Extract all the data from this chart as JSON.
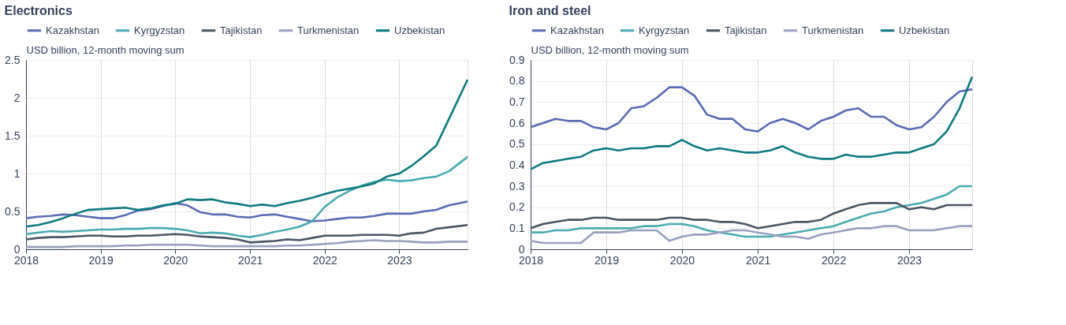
{
  "chart_data": [
    {
      "type": "line",
      "title": "Electronics",
      "ylabel": "USD billion, 12-month moving sum",
      "x": [
        "2018-01",
        "2018-03",
        "2018-05",
        "2018-07",
        "2018-09",
        "2018-11",
        "2019-01",
        "2019-03",
        "2019-05",
        "2019-07",
        "2019-09",
        "2019-11",
        "2020-01",
        "2020-03",
        "2020-05",
        "2020-07",
        "2020-09",
        "2020-11",
        "2021-01",
        "2021-03",
        "2021-05",
        "2021-07",
        "2021-09",
        "2021-11",
        "2022-01",
        "2022-03",
        "2022-05",
        "2022-07",
        "2022-09",
        "2022-11",
        "2023-01",
        "2023-03",
        "2023-05",
        "2023-07",
        "2023-09",
        "2023-12"
      ],
      "series": [
        {
          "name": "Kazakhstan",
          "color": "#5b6bb5",
          "values": [
            0.41,
            0.43,
            0.44,
            0.46,
            0.45,
            0.43,
            0.41,
            0.41,
            0.45,
            0.51,
            0.53,
            0.57,
            0.61,
            0.58,
            0.49,
            0.46,
            0.46,
            0.43,
            0.42,
            0.45,
            0.46,
            0.43,
            0.4,
            0.37,
            0.38,
            0.4,
            0.42,
            0.42,
            0.44,
            0.47,
            0.47,
            0.47,
            0.5,
            0.52,
            0.58,
            0.63
          ]
        },
        {
          "name": "Kyrgyzstan",
          "color": "#4aabb0",
          "values": [
            0.2,
            0.22,
            0.24,
            0.23,
            0.24,
            0.25,
            0.26,
            0.26,
            0.27,
            0.27,
            0.28,
            0.28,
            0.27,
            0.25,
            0.21,
            0.22,
            0.21,
            0.18,
            0.16,
            0.19,
            0.23,
            0.26,
            0.3,
            0.37,
            0.56,
            0.68,
            0.77,
            0.84,
            0.89,
            0.92,
            0.9,
            0.91,
            0.94,
            0.96,
            1.03,
            1.22
          ]
        },
        {
          "name": "Tajikistan",
          "color": "#4a5563",
          "values": [
            0.13,
            0.15,
            0.16,
            0.16,
            0.17,
            0.18,
            0.18,
            0.17,
            0.17,
            0.18,
            0.18,
            0.19,
            0.2,
            0.19,
            0.17,
            0.16,
            0.15,
            0.13,
            0.09,
            0.1,
            0.11,
            0.13,
            0.12,
            0.15,
            0.18,
            0.18,
            0.18,
            0.19,
            0.19,
            0.19,
            0.18,
            0.21,
            0.22,
            0.27,
            0.29,
            0.32
          ]
        },
        {
          "name": "Turkmenistan",
          "color": "#9a9fc0",
          "values": [
            0.03,
            0.03,
            0.03,
            0.03,
            0.04,
            0.04,
            0.04,
            0.04,
            0.05,
            0.05,
            0.06,
            0.06,
            0.06,
            0.06,
            0.05,
            0.04,
            0.04,
            0.04,
            0.04,
            0.04,
            0.04,
            0.05,
            0.05,
            0.06,
            0.07,
            0.08,
            0.1,
            0.11,
            0.12,
            0.11,
            0.11,
            0.1,
            0.09,
            0.09,
            0.1,
            0.1
          ]
        },
        {
          "name": "Uzbekistan",
          "color": "#0e7a80",
          "values": [
            0.3,
            0.32,
            0.36,
            0.41,
            0.47,
            0.52,
            0.53,
            0.54,
            0.55,
            0.52,
            0.54,
            0.58,
            0.6,
            0.66,
            0.65,
            0.66,
            0.62,
            0.6,
            0.57,
            0.59,
            0.57,
            0.61,
            0.64,
            0.68,
            0.73,
            0.77,
            0.8,
            0.83,
            0.87,
            0.96,
            1.0,
            1.1,
            1.23,
            1.37,
            1.72,
            2.24
          ]
        }
      ],
      "xlim": [
        "2018-01",
        "2023-12"
      ],
      "xticks": [
        {
          "value": "2018",
          "label": "2018"
        },
        {
          "value": "2019",
          "label": "2019"
        },
        {
          "value": "2020",
          "label": "2020"
        },
        {
          "value": "2021",
          "label": "2021"
        },
        {
          "value": "2022",
          "label": "2022"
        },
        {
          "value": "2023",
          "label": "2023"
        }
      ],
      "ylim": [
        0,
        2.5
      ],
      "yticks": [
        0,
        0.5,
        1,
        1.5,
        2,
        2.5
      ],
      "grid": true,
      "legend": "top",
      "line_style": "solid",
      "marker": "none"
    },
    {
      "type": "line",
      "title": "Iron and steel",
      "ylabel": "USD billion, 12-month moving sum",
      "x": [
        "2018-01",
        "2018-03",
        "2018-05",
        "2018-07",
        "2018-09",
        "2018-11",
        "2019-01",
        "2019-03",
        "2019-05",
        "2019-07",
        "2019-09",
        "2019-11",
        "2020-01",
        "2020-03",
        "2020-05",
        "2020-07",
        "2020-09",
        "2020-11",
        "2021-01",
        "2021-03",
        "2021-05",
        "2021-07",
        "2021-09",
        "2021-11",
        "2022-01",
        "2022-03",
        "2022-05",
        "2022-07",
        "2022-09",
        "2022-11",
        "2023-01",
        "2023-03",
        "2023-05",
        "2023-07",
        "2023-09",
        "2023-11"
      ],
      "series": [
        {
          "name": "Kazakhstan",
          "color": "#5b6bb5",
          "values": [
            0.58,
            0.6,
            0.62,
            0.61,
            0.61,
            0.58,
            0.57,
            0.6,
            0.67,
            0.68,
            0.72,
            0.77,
            0.77,
            0.73,
            0.64,
            0.62,
            0.62,
            0.57,
            0.56,
            0.6,
            0.62,
            0.6,
            0.57,
            0.61,
            0.63,
            0.66,
            0.67,
            0.63,
            0.63,
            0.59,
            0.57,
            0.58,
            0.63,
            0.7,
            0.75,
            0.76
          ]
        },
        {
          "name": "Kyrgyzstan",
          "color": "#4aabb0",
          "values": [
            0.08,
            0.08,
            0.09,
            0.09,
            0.1,
            0.1,
            0.1,
            0.1,
            0.1,
            0.11,
            0.11,
            0.12,
            0.12,
            0.11,
            0.09,
            0.08,
            0.07,
            0.06,
            0.06,
            0.06,
            0.07,
            0.08,
            0.09,
            0.1,
            0.11,
            0.13,
            0.15,
            0.17,
            0.18,
            0.2,
            0.21,
            0.22,
            0.24,
            0.26,
            0.3,
            0.3
          ]
        },
        {
          "name": "Tajikistan",
          "color": "#4a5563",
          "values": [
            0.1,
            0.12,
            0.13,
            0.14,
            0.14,
            0.15,
            0.15,
            0.14,
            0.14,
            0.14,
            0.14,
            0.15,
            0.15,
            0.14,
            0.14,
            0.13,
            0.13,
            0.12,
            0.1,
            0.11,
            0.12,
            0.13,
            0.13,
            0.14,
            0.17,
            0.19,
            0.21,
            0.22,
            0.22,
            0.22,
            0.19,
            0.2,
            0.19,
            0.21,
            0.21,
            0.21
          ]
        },
        {
          "name": "Turkmenistan",
          "color": "#9a9fc0",
          "values": [
            0.04,
            0.03,
            0.03,
            0.03,
            0.03,
            0.08,
            0.08,
            0.08,
            0.09,
            0.09,
            0.09,
            0.04,
            0.06,
            0.07,
            0.07,
            0.08,
            0.09,
            0.09,
            0.08,
            0.07,
            0.06,
            0.06,
            0.05,
            0.07,
            0.08,
            0.09,
            0.1,
            0.1,
            0.11,
            0.11,
            0.09,
            0.09,
            0.09,
            0.1,
            0.11,
            0.11
          ]
        },
        {
          "name": "Uzbekistan",
          "color": "#0e7a80",
          "values": [
            0.38,
            0.41,
            0.42,
            0.43,
            0.44,
            0.47,
            0.48,
            0.47,
            0.48,
            0.48,
            0.49,
            0.49,
            0.52,
            0.49,
            0.47,
            0.48,
            0.47,
            0.46,
            0.46,
            0.47,
            0.49,
            0.46,
            0.44,
            0.43,
            0.43,
            0.45,
            0.44,
            0.44,
            0.45,
            0.46,
            0.46,
            0.48,
            0.5,
            0.56,
            0.67,
            0.82
          ]
        }
      ],
      "xlim": [
        "2018-01",
        "2023-11"
      ],
      "xticks": [
        {
          "value": "2018",
          "label": "2018"
        },
        {
          "value": "2019",
          "label": "2019"
        },
        {
          "value": "2020",
          "label": "2020"
        },
        {
          "value": "2021",
          "label": "2021"
        },
        {
          "value": "2022",
          "label": "2022"
        },
        {
          "value": "2023",
          "label": "2023"
        }
      ],
      "ylim": [
        0,
        0.9
      ],
      "yticks": [
        0,
        0.1,
        0.2,
        0.3,
        0.4,
        0.5,
        0.6,
        0.7,
        0.8,
        0.9
      ],
      "grid": true,
      "legend": "top",
      "line_style": "solid",
      "marker": "none"
    }
  ]
}
